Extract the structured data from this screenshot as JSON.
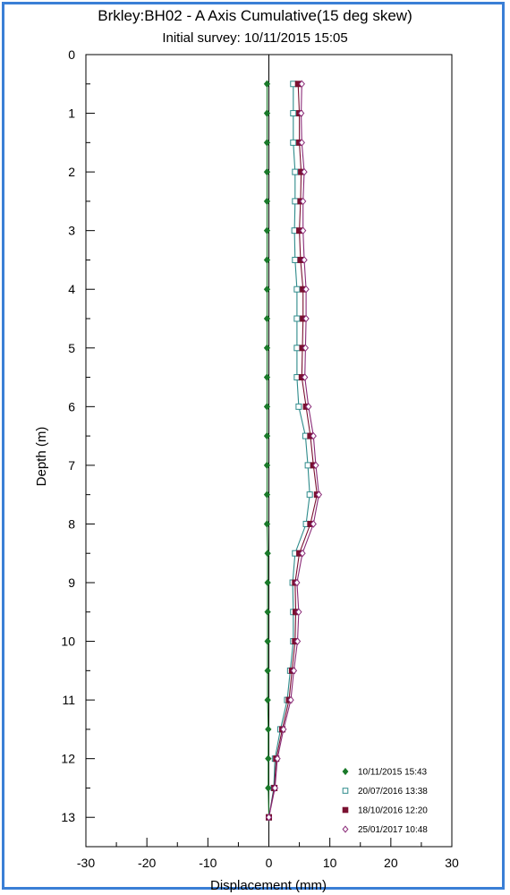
{
  "chart_data": {
    "type": "line",
    "title": "Brkley:BH02 - A Axis Cumulative(15 deg skew)",
    "subtitle": "Initial survey:  10/11/2015 15:05",
    "xlabel": "Displacement  (mm)",
    "ylabel": "Depth  (m)",
    "xlim": [
      -30,
      30
    ],
    "ylim": [
      13.5,
      0
    ],
    "x_ticks": [
      -30,
      -20,
      -10,
      0,
      10,
      20,
      30
    ],
    "y_ticks": [
      0,
      1,
      2,
      3,
      4,
      5,
      6,
      7,
      8,
      9,
      10,
      11,
      12,
      13
    ],
    "y_inverted": true,
    "grid": false,
    "legend_position": "bottom-right",
    "depth": [
      0.5,
      1.0,
      1.5,
      2.0,
      2.5,
      3.0,
      3.5,
      4.0,
      4.5,
      5.0,
      5.5,
      6.0,
      6.5,
      7.0,
      7.5,
      8.0,
      8.5,
      9.0,
      9.5,
      10.0,
      10.5,
      11.0,
      11.5,
      12.0,
      12.5,
      13.0
    ],
    "series": [
      {
        "name": "10/11/2015 15:43",
        "color": "#1a7a2a",
        "marker": "diamond-filled",
        "values": [
          -0.3,
          -0.3,
          -0.3,
          -0.3,
          -0.3,
          -0.3,
          -0.3,
          -0.3,
          -0.3,
          -0.3,
          -0.3,
          -0.3,
          -0.3,
          -0.3,
          -0.3,
          -0.3,
          -0.2,
          -0.2,
          -0.2,
          -0.2,
          -0.2,
          -0.2,
          -0.1,
          -0.1,
          -0.1,
          0.0
        ]
      },
      {
        "name": "20/07/2016 13:38",
        "color": "#2e8b8b",
        "marker": "square-open",
        "values": [
          4.0,
          4.0,
          4.0,
          4.3,
          4.3,
          4.2,
          4.3,
          4.6,
          4.6,
          4.6,
          4.6,
          4.9,
          6.0,
          6.4,
          6.7,
          6.1,
          4.3,
          3.9,
          4.0,
          4.0,
          3.5,
          3.0,
          1.9,
          1.0,
          0.8,
          0.0
        ]
      },
      {
        "name": "18/10/2016 12:20",
        "color": "#7a1030",
        "marker": "square-filled",
        "values": [
          4.8,
          5.0,
          5.0,
          5.3,
          5.2,
          5.0,
          5.2,
          5.6,
          5.6,
          5.5,
          5.4,
          6.1,
          6.8,
          7.3,
          7.9,
          6.8,
          5.0,
          4.3,
          4.4,
          4.3,
          3.8,
          3.3,
          2.2,
          1.2,
          0.9,
          0.0
        ]
      },
      {
        "name": "25/01/2017 10:48",
        "color": "#8a2b78",
        "marker": "diamond-open",
        "values": [
          5.4,
          5.3,
          5.4,
          5.8,
          5.6,
          5.6,
          5.8,
          6.1,
          6.1,
          6.0,
          5.9,
          6.5,
          7.3,
          7.7,
          8.2,
          7.3,
          5.5,
          4.6,
          4.9,
          4.7,
          4.1,
          3.6,
          2.4,
          1.4,
          1.0,
          0.0
        ]
      }
    ]
  }
}
